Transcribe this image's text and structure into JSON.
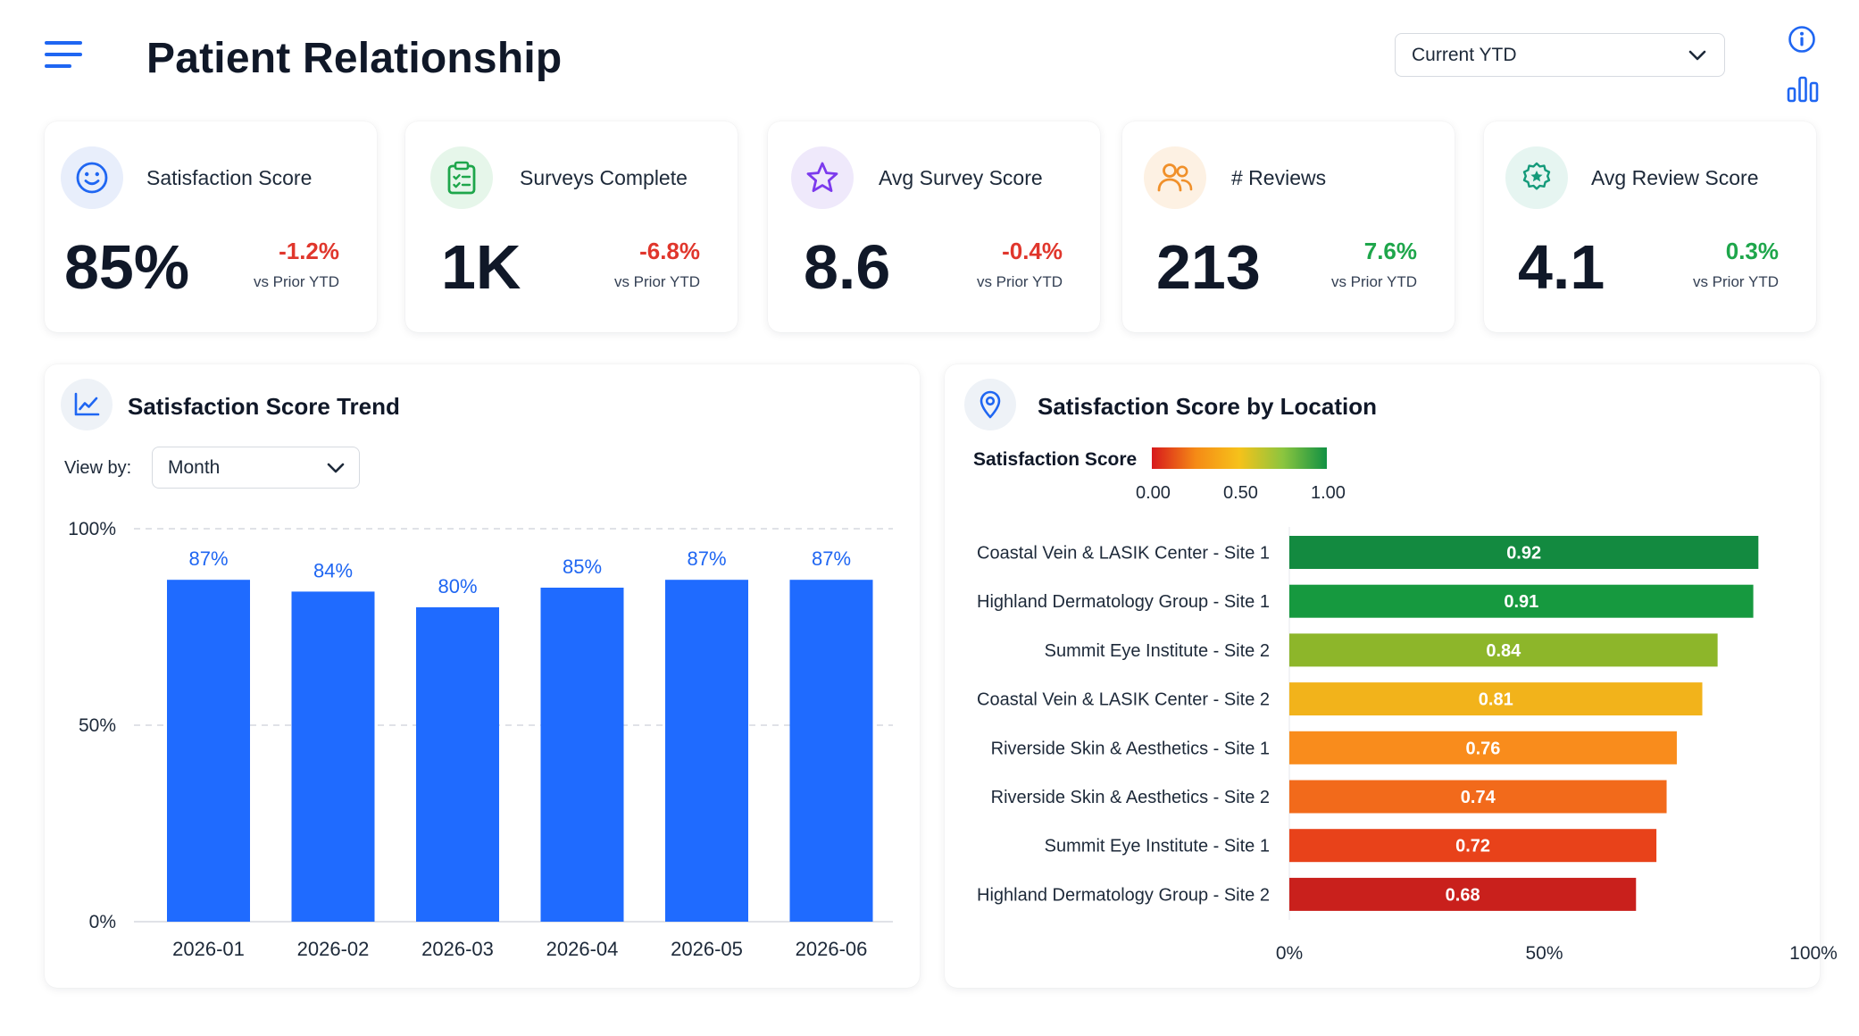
{
  "header": {
    "title": "Patient Relationship",
    "period_select": {
      "value": "Current YTD"
    },
    "icons": [
      "menu-icon",
      "info-icon",
      "bar-chart-icon"
    ]
  },
  "kpis": [
    {
      "label": "Satisfaction Score",
      "value": "85%",
      "delta": "-1.2%",
      "delta_sub": "vs Prior YTD",
      "trend": "negative",
      "icon": "smiley-icon",
      "icon_bg": "#e8eefb",
      "icon_color": "#1f66f2"
    },
    {
      "label": "Surveys Complete",
      "value": "1K",
      "delta": "-6.8%",
      "delta_sub": "vs Prior YTD",
      "trend": "negative",
      "icon": "clipboard-icon",
      "icon_bg": "#e6f6ea",
      "icon_color": "#1ea64b"
    },
    {
      "label": "Avg Survey Score",
      "value": "8.6",
      "delta": "-0.4%",
      "delta_sub": "vs Prior YTD",
      "trend": "negative",
      "icon": "star-icon",
      "icon_bg": "#efe9fb",
      "icon_color": "#7c3aed"
    },
    {
      "label": "# Reviews",
      "value": "213",
      "delta": "7.6%",
      "delta_sub": "vs Prior YTD",
      "trend": "positive",
      "icon": "users-icon",
      "icon_bg": "#fdf1e3",
      "icon_color": "#f0902a"
    },
    {
      "label": "Avg Review Score",
      "value": "4.1",
      "delta": "0.3%",
      "delta_sub": "vs Prior YTD",
      "trend": "positive",
      "icon": "badge-star-icon",
      "icon_bg": "#e6f5f1",
      "icon_color": "#149a7a"
    }
  ],
  "trend_panel": {
    "title": "Satisfaction Score Trend",
    "view_by_label": "View by:",
    "view_by_value": "Month",
    "icon": "line-chart-icon"
  },
  "location_panel": {
    "title": "Satisfaction Score by Location",
    "legend_label": "Satisfaction Score",
    "legend_ticks": [
      "0.00",
      "0.50",
      "1.00"
    ],
    "icon": "map-pin-icon"
  },
  "chart_data": [
    {
      "type": "bar",
      "orientation": "vertical",
      "categories": [
        "2026-01",
        "2026-02",
        "2026-03",
        "2026-04",
        "2026-05",
        "2026-06"
      ],
      "values": [
        87,
        84,
        80,
        85,
        87,
        87
      ],
      "data_labels": [
        "87%",
        "84%",
        "80%",
        "85%",
        "87%",
        "87%"
      ],
      "ylim": [
        0,
        100
      ],
      "y_ticks": [
        "0%",
        "50%",
        "100%"
      ],
      "grid": true,
      "bar_color": "#1f6bff",
      "label_color": "#1f66f2"
    },
    {
      "type": "bar",
      "orientation": "horizontal",
      "categories": [
        "Coastal Vein & LASIK Center - Site 1",
        "Highland Dermatology Group - Site 1",
        "Summit Eye Institute - Site 2",
        "Coastal Vein & LASIK Center - Site 2",
        "Riverside Skin & Aesthetics - Site 1",
        "Riverside Skin & Aesthetics - Site 2",
        "Summit Eye Institute - Site 1",
        "Highland Dermatology Group - Site 2"
      ],
      "values": [
        0.92,
        0.91,
        0.84,
        0.81,
        0.76,
        0.74,
        0.72,
        0.68
      ],
      "data_labels": [
        "0.92",
        "0.91",
        "0.84",
        "0.81",
        "0.76",
        "0.74",
        "0.72",
        "0.68"
      ],
      "colors": [
        "#138a40",
        "#16993f",
        "#8db62a",
        "#f2b31b",
        "#f98c1c",
        "#f26a1b",
        "#e8421a",
        "#c9201c"
      ],
      "xlim": [
        0,
        1
      ],
      "x_ticks": [
        "0%",
        "50%",
        "100%"
      ],
      "color_scale": "continuous red-to-green"
    }
  ]
}
